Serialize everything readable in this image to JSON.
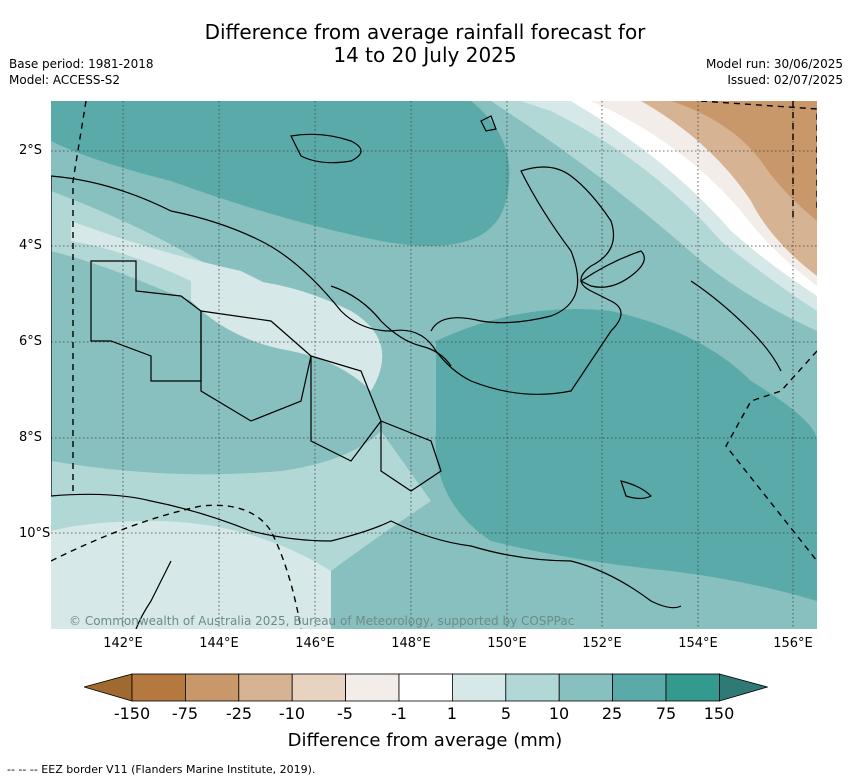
{
  "title_line1": "Difference from average rainfall forecast for",
  "title_line2": "14 to 20 July 2025",
  "base_period": "Base period: 1981-2018",
  "model": "Model: ACCESS-S2",
  "model_run": "Model run: 30/06/2025",
  "issued": "Issued: 02/07/2025",
  "lat_labels": [
    "2°S",
    "4°S",
    "6°S",
    "8°S",
    "10°S"
  ],
  "lon_labels": [
    "142°E",
    "144°E",
    "146°E",
    "148°E",
    "150°E",
    "152°E",
    "154°E",
    "156°E"
  ],
  "legend": {
    "ticks": [
      "-150",
      "-75",
      "-25",
      "-10",
      "-5",
      "-1",
      "1",
      "5",
      "10",
      "25",
      "75",
      "150"
    ],
    "title": "Difference from average (mm)",
    "colors": [
      "#a0692f",
      "#b5783f",
      "#c8976a",
      "#d6b392",
      "#e8d3c1",
      "#f3ede9",
      "#ffffff",
      "#d6e9e8",
      "#b2d8d6",
      "#87c0be",
      "#5aaaa9",
      "#34998f",
      "#2f7a74"
    ]
  },
  "copyright": "© Commonwealth of Australia 2025, Bureau of Meteorology, supported by COSPPac",
  "footnote": "--  --  -- EEZ border V11 (Flanders Marine Institute, 2019)."
}
